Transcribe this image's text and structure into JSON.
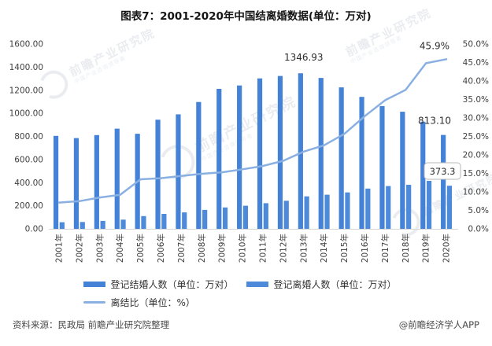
{
  "title": "图表7：2001-2020年中国结离婚数据(单位：万对)",
  "legend": {
    "items": [
      {
        "label": "登记结婚人数（单位：万对）",
        "swatch": "bar",
        "color": "#4482d8"
      },
      {
        "label": "登记离婚人数（单位：万对）",
        "swatch": "bar",
        "color": "#4e8ada"
      },
      {
        "label": "离结比（单位：%）",
        "swatch": "line",
        "color": "#8ab0e2"
      }
    ]
  },
  "footer": {
    "source": "资料来源：民政局 前瞻产业研究院整理",
    "credit": "@前瞻经济学人APP"
  },
  "watermark": {
    "brand": "前瞻产业研究院",
    "tagline": "中国产业咨询领导者"
  },
  "colors": {
    "marriage_bar": "#4482d8",
    "divorce_bar": "#4e8ada",
    "ratio_line": "#8ab0e2",
    "axis_text": "#404040",
    "axis_line": "#d6d6d6",
    "annotation_text": "#2e2e2e",
    "box_border": "#b8b8b8",
    "box_fill": "#ffffff"
  },
  "chart_data": {
    "type": "bar+line",
    "title": "图表7：2001-2020年中国结离婚数据(单位：万对)",
    "categories": [
      "2001年",
      "2002年",
      "2003年",
      "2004年",
      "2005年",
      "2006年",
      "2007年",
      "2008年",
      "2009年",
      "2010年",
      "2011年",
      "2012年",
      "2013年",
      "2014年",
      "2015年",
      "2016年",
      "2017年",
      "2018年",
      "2019年",
      "2020年"
    ],
    "series": [
      {
        "name": "登记结婚人数（单位：万对）",
        "chart": "bar",
        "axis": "left",
        "values": [
          805.0,
          786.0,
          811.4,
          867.2,
          823.1,
          945.0,
          991.4,
          1098.3,
          1212.2,
          1241.0,
          1302.4,
          1323.6,
          1346.93,
          1306.7,
          1224.7,
          1142.8,
          1063.1,
          1013.9,
          927.3,
          813.1
        ]
      },
      {
        "name": "登记离婚人数（单位：万对）",
        "chart": "bar",
        "axis": "left",
        "values": [
          57.0,
          59.0,
          69.0,
          80.0,
          110.5,
          129.4,
          142.0,
          164.0,
          185.0,
          200.0,
          222.0,
          243.0,
          281.5,
          295.7,
          314.9,
          348.6,
          370.4,
          381.2,
          415.4,
          373.3
        ]
      },
      {
        "name": "离结比（单位：%）",
        "chart": "line",
        "axis": "right",
        "values": [
          7.1,
          7.5,
          8.5,
          9.2,
          13.4,
          13.7,
          14.3,
          14.9,
          15.3,
          16.1,
          17.0,
          18.4,
          20.9,
          22.6,
          25.7,
          30.5,
          34.8,
          37.6,
          44.8,
          45.9
        ]
      }
    ],
    "left_axis": {
      "min": 0,
      "max": 1600,
      "step": 200,
      "labels": [
        "1600.00",
        "1400.00",
        "1200.00",
        "1000.00",
        "800.00",
        "600.00",
        "400.00",
        "200.00",
        "0.00"
      ]
    },
    "right_axis": {
      "min": 0,
      "max": 50,
      "step": 5,
      "labels": [
        "50.0%",
        "45.0%",
        "40.0%",
        "35.0%",
        "30.0%",
        "25.0%",
        "20.0%",
        "15.0%",
        "10.0%",
        "5.0%",
        "0.0%"
      ]
    },
    "annotations": {
      "peak_marriage": "1346.93",
      "last_marriage": "813.10",
      "last_ratio": "45.9%",
      "last_divorce_boxed": "373.3"
    },
    "grid": false,
    "legend_position": "bottom"
  }
}
